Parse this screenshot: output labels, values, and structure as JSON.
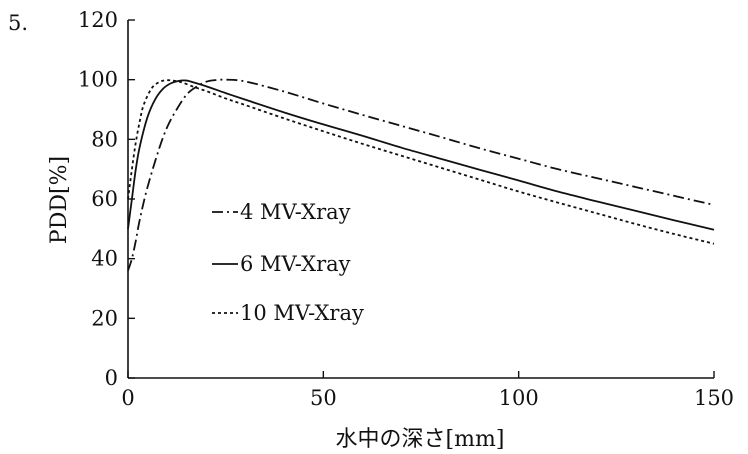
{
  "figure_label": "5.",
  "chart_data": {
    "type": "line",
    "title": "",
    "xlabel": "水中の深さ[mm]",
    "ylabel": "PDD[%]",
    "xlim": [
      0,
      150
    ],
    "ylim": [
      0,
      120
    ],
    "xticks": [
      0,
      50,
      100,
      150
    ],
    "yticks": [
      0,
      20,
      40,
      60,
      80,
      100,
      120
    ],
    "grid": false,
    "legend_position": "center-left",
    "series": [
      {
        "name": "4 MV-Xray",
        "dash": "dash-dot",
        "x": [
          0,
          1,
          2,
          3,
          5,
          8,
          10,
          12,
          15,
          18,
          20,
          22,
          25,
          30,
          40,
          50,
          60,
          70,
          80,
          90,
          100,
          110,
          120,
          130,
          140,
          150
        ],
        "y": [
          36,
          40,
          46,
          53,
          64,
          77,
          84,
          89,
          95,
          98,
          99.3,
          99.8,
          100,
          99.4,
          96,
          92,
          88.2,
          84.5,
          80.8,
          77,
          73.5,
          70,
          67,
          64,
          61,
          58
        ]
      },
      {
        "name": "6 MV-Xray",
        "dash": "solid",
        "x": [
          0,
          1,
          2,
          3,
          5,
          7,
          9,
          11,
          13,
          15,
          17,
          20,
          25,
          30,
          40,
          50,
          60,
          70,
          80,
          90,
          100,
          110,
          120,
          130,
          140,
          150
        ],
        "y": [
          50,
          60,
          70,
          77.5,
          87.5,
          93.5,
          97,
          98.8,
          99.6,
          99.7,
          99,
          97.8,
          95.5,
          93.3,
          89,
          85,
          81.2,
          77.2,
          73.5,
          69.8,
          66.2,
          62.5,
          59.2,
          56,
          52.8,
          49.7
        ]
      },
      {
        "name": "10 MV-Xray",
        "dash": "dotted",
        "x": [
          0,
          1,
          2,
          3,
          4,
          6,
          8,
          10,
          12,
          14,
          17,
          20,
          25,
          30,
          40,
          50,
          60,
          70,
          80,
          90,
          100,
          110,
          120,
          130,
          140,
          150
        ],
        "y": [
          60,
          70,
          79,
          86,
          91.5,
          97,
          99.2,
          99.8,
          99.6,
          99,
          97.5,
          96.2,
          93.7,
          91.5,
          87,
          82.7,
          78.5,
          74.5,
          70.5,
          66.5,
          62.5,
          58.8,
          55.2,
          51.6,
          48.2,
          45
        ]
      }
    ]
  }
}
